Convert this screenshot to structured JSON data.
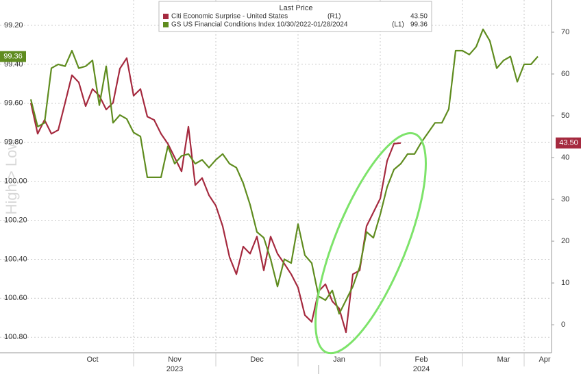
{
  "chart_data": {
    "type": "line",
    "legend_title": "Last Price",
    "y_label": "High > Low",
    "categories": [
      null,
      null,
      null,
      null,
      null,
      null,
      null,
      null,
      null,
      "Oct",
      null,
      null,
      null,
      null,
      null,
      null,
      null,
      null,
      null,
      null,
      null,
      "Nov",
      null,
      null,
      null,
      null,
      null,
      null,
      null,
      null,
      null,
      null,
      null,
      "Dec",
      null,
      null,
      null,
      null,
      null,
      null,
      null,
      null,
      null,
      null,
      null,
      "Jan",
      null,
      null,
      null,
      null,
      null,
      null,
      null,
      null,
      null,
      null,
      null,
      "Feb",
      null,
      null,
      null,
      null,
      null,
      null,
      null,
      null,
      null,
      null,
      null,
      "Mar",
      null,
      null,
      null,
      null,
      null,
      "Apr"
    ],
    "x_group_labels": [
      "2023",
      "2024"
    ],
    "ylim": [
      100.88,
      99.07
    ],
    "yticks": [
      {
        "value": 99.2,
        "label": "99.20"
      },
      {
        "value": 99.4,
        "label": "99.40"
      },
      {
        "value": 99.6,
        "label": "99.60"
      },
      {
        "value": 99.8,
        "label": "99.80"
      },
      {
        "value": 100,
        "label": "100.00"
      },
      {
        "value": 100.2,
        "label": "100.20"
      },
      {
        "value": 100.4,
        "label": "100.40"
      },
      {
        "value": 100.6,
        "label": "100.60"
      },
      {
        "value": 100.8,
        "label": "100.80"
      }
    ],
    "y2lim": [
      -6.7,
      77.7
    ],
    "y2ticks": [
      0,
      10,
      20,
      30,
      40,
      50,
      60,
      70
    ],
    "grid": true,
    "series": [
      {
        "name": "Citi Economic Surprise - United States",
        "axis_tag": "(R1)",
        "last_value_label": "43.50",
        "color": "#a52a3f",
        "axis": "y2",
        "values": [
          53.1,
          45.7,
          49.0,
          45.7,
          46.6,
          53.1,
          59.7,
          58.0,
          52.3,
          56.4,
          54.8,
          51.5,
          53.1,
          61.3,
          63.8,
          54.8,
          56.4,
          49.8,
          49.0,
          45.7,
          43.3,
          40.0,
          36.7,
          47.4,
          33.4,
          35.1,
          31.0,
          28.5,
          23.6,
          16.2,
          12.1,
          18.7,
          17.0,
          21.1,
          13.0,
          21.1,
          17.0,
          14.6,
          12.1,
          8.9,
          2.3,
          0.7,
          8.0,
          9.7,
          5.6,
          3.9,
          -1.8,
          12.1,
          13.0,
          23.6,
          26.9,
          30.2,
          39.2,
          43.3,
          43.5,
          null,
          null,
          null,
          null,
          null,
          null,
          null,
          null,
          null,
          null,
          null,
          null,
          null,
          null,
          null,
          null,
          null,
          null,
          null,
          null,
          null
        ]
      },
      {
        "name": "GS US Financial Conditions Index 10/30/2022-01/28/2024",
        "axis_tag": "(L1)",
        "last_value_label": "99.36",
        "color": "#5f8c1f",
        "axis": "y",
        "values": [
          99.58,
          99.72,
          99.7,
          99.42,
          99.4,
          99.41,
          99.33,
          99.42,
          99.41,
          99.38,
          99.61,
          99.41,
          99.7,
          99.66,
          99.68,
          99.75,
          99.77,
          99.98,
          99.98,
          99.98,
          99.82,
          99.91,
          99.87,
          99.86,
          99.91,
          99.89,
          99.93,
          99.89,
          99.86,
          99.91,
          99.93,
          100.01,
          100.12,
          100.26,
          100.29,
          100.4,
          100.54,
          100.4,
          100.42,
          100.22,
          100.38,
          100.42,
          100.59,
          100.61,
          100.56,
          100.68,
          100.61,
          100.54,
          100.44,
          100.26,
          100.29,
          100.17,
          100.03,
          99.94,
          99.91,
          99.86,
          99.86,
          99.8,
          99.75,
          99.7,
          99.7,
          99.63,
          99.33,
          99.33,
          99.35,
          99.31,
          99.22,
          99.28,
          99.42,
          99.38,
          99.36,
          99.49,
          99.4,
          99.4,
          99.36,
          null
        ]
      }
    ]
  }
}
